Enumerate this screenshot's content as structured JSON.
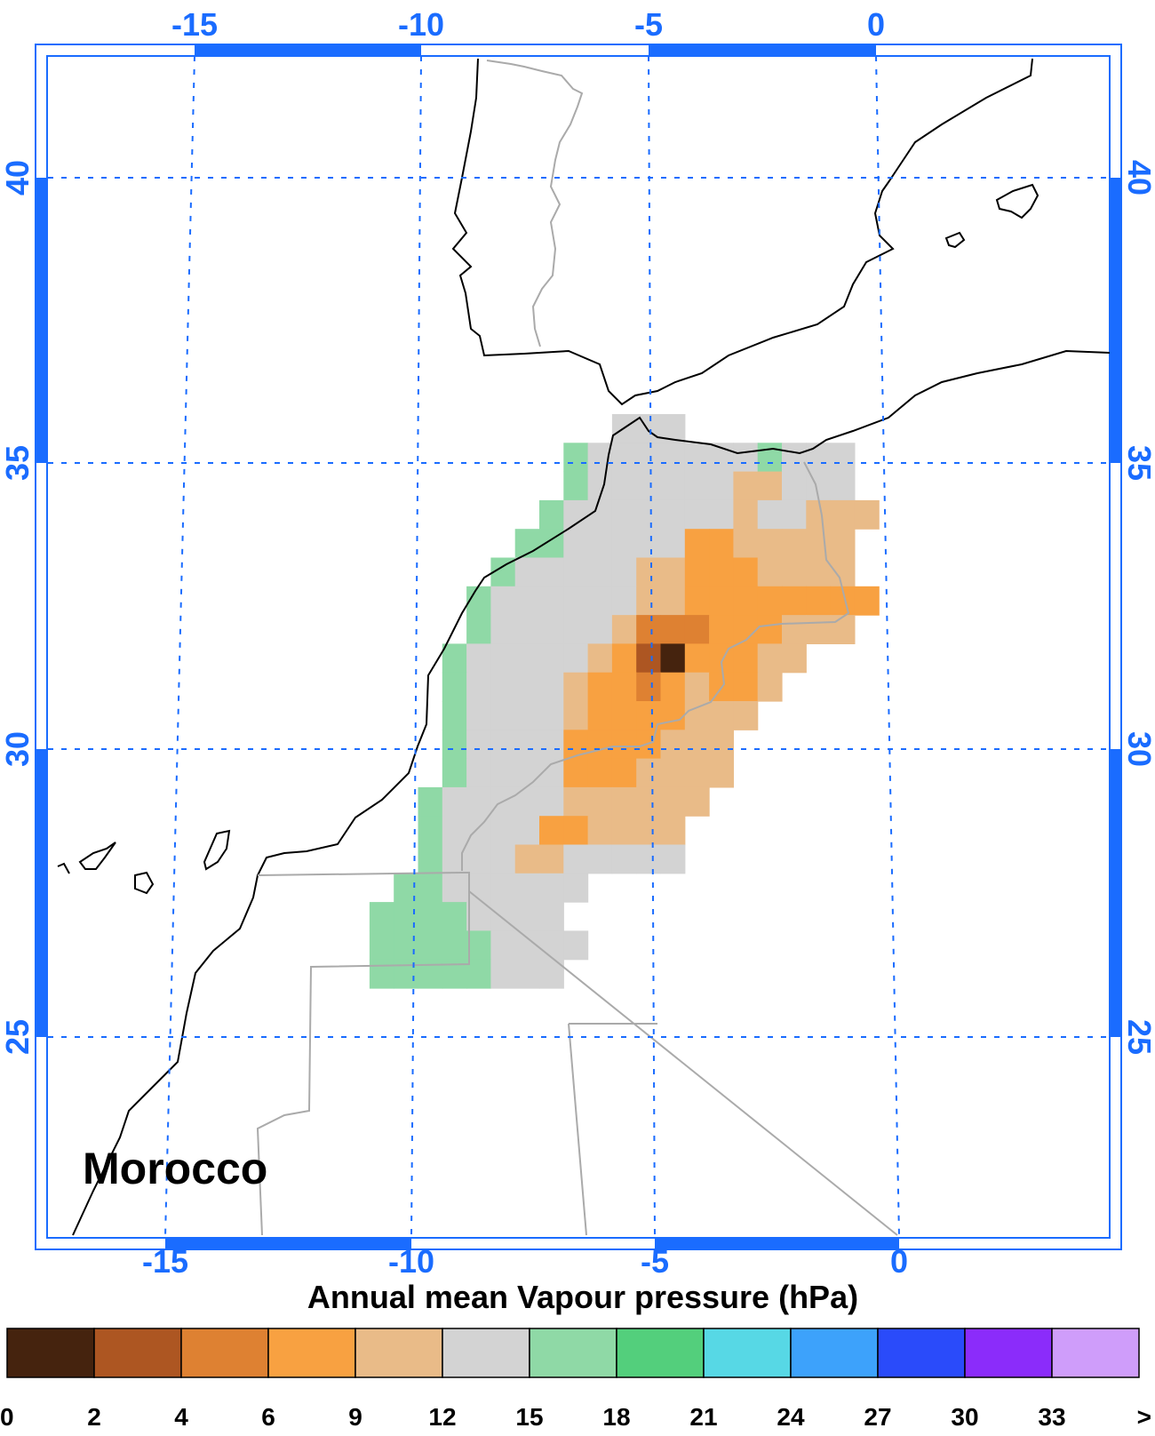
{
  "region_label": "Morocco",
  "legend_title": "Annual mean Vapour pressure (hPa)",
  "chart_data": {
    "type": "heatmap",
    "title": "Annual mean Vapour pressure (hPa)",
    "units": "hPa",
    "lon_ticks_top": [
      "-15",
      "-10",
      "-5",
      "0"
    ],
    "lon_ticks_bottom": [
      "-15",
      "-10",
      "-5",
      "0"
    ],
    "lat_ticks": [
      "40",
      "35",
      "30",
      "25"
    ],
    "grid": true,
    "colorbar": {
      "labels": [
        "0",
        "2",
        "4",
        "6",
        "9",
        "12",
        "15",
        "18",
        "21",
        "24",
        "27",
        "30",
        "33",
        ">"
      ],
      "colors": [
        "#45230e",
        "#ad5622",
        "#de8132",
        "#f8a141",
        "#e9bb88",
        "#d3d3d3",
        "#8fd9a6",
        "#53cf7c",
        "#57d8e5",
        "#3da2fb",
        "#2a4bfa",
        "#8b2cfa",
        "#cf9dfa"
      ]
    },
    "cell_colors": {
      "a": "#45230e",
      "b": "#ad5622",
      "c": "#de8132",
      "d": "#f8a141",
      "e": "#e9bb88",
      "f": "#d3d3d3",
      "g": "#8fd9a6"
    },
    "cells": [
      "#############fff########",
      "###########gfffffffgfff#",
      "###########gffffffeefff#",
      "##########gfffffffeffeee",
      "#########ggfffffddeeeee#",
      "########gfffffeedddeeee#",
      "#######gffffffeedddddddd",
      "#######gfffffecccdddeee#",
      "######gfffffedbadddee###",
      "######gffffeddcdedde####",
      "######gffffeddddeee#####",
      "######gffffddddeee######",
      "######gffffdddeeee######",
      "#####gfffffeeeeee#######",
      "#####gffffddeeee########",
      "#####gfffeefffff########",
      "####ggffffff############",
      "###ggggffff#############",
      "###gggggffff############",
      "###gggggfff#############"
    ]
  }
}
